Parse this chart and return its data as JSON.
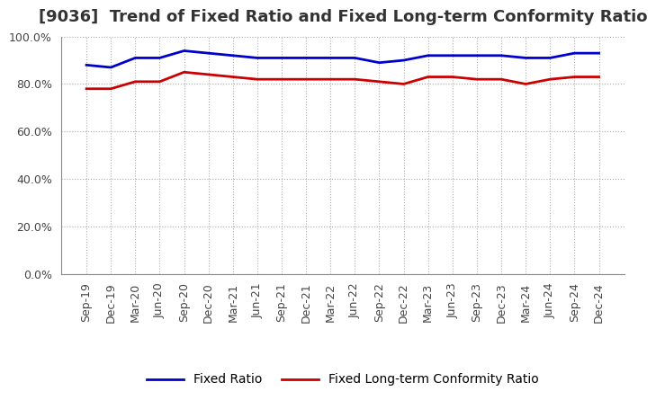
{
  "title": "[9036]  Trend of Fixed Ratio and Fixed Long-term Conformity Ratio",
  "x_labels": [
    "Sep-19",
    "Dec-19",
    "Mar-20",
    "Jun-20",
    "Sep-20",
    "Dec-20",
    "Mar-21",
    "Jun-21",
    "Sep-21",
    "Dec-21",
    "Mar-22",
    "Jun-22",
    "Sep-22",
    "Dec-22",
    "Mar-23",
    "Jun-23",
    "Sep-23",
    "Dec-23",
    "Mar-24",
    "Jun-24",
    "Sep-24",
    "Dec-24"
  ],
  "fixed_ratio": [
    88,
    87,
    91,
    91,
    94,
    93,
    92,
    91,
    91,
    91,
    91,
    91,
    89,
    90,
    92,
    92,
    92,
    92,
    91,
    91,
    93,
    93
  ],
  "fixed_lt_ratio": [
    78,
    78,
    81,
    81,
    85,
    84,
    83,
    82,
    82,
    82,
    82,
    82,
    81,
    80,
    83,
    83,
    82,
    82,
    80,
    82,
    83,
    83
  ],
  "ylim": [
    0,
    100
  ],
  "yticks": [
    0,
    20,
    40,
    60,
    80,
    100
  ],
  "line_color_fixed": "#0000CC",
  "line_color_lt": "#CC0000",
  "grid_color": "#AAAAAA",
  "background_color": "#FFFFFF",
  "legend_fixed": "Fixed Ratio",
  "legend_lt": "Fixed Long-term Conformity Ratio",
  "title_fontsize": 13,
  "tick_fontsize": 9,
  "legend_fontsize": 10,
  "linewidth": 2.0
}
